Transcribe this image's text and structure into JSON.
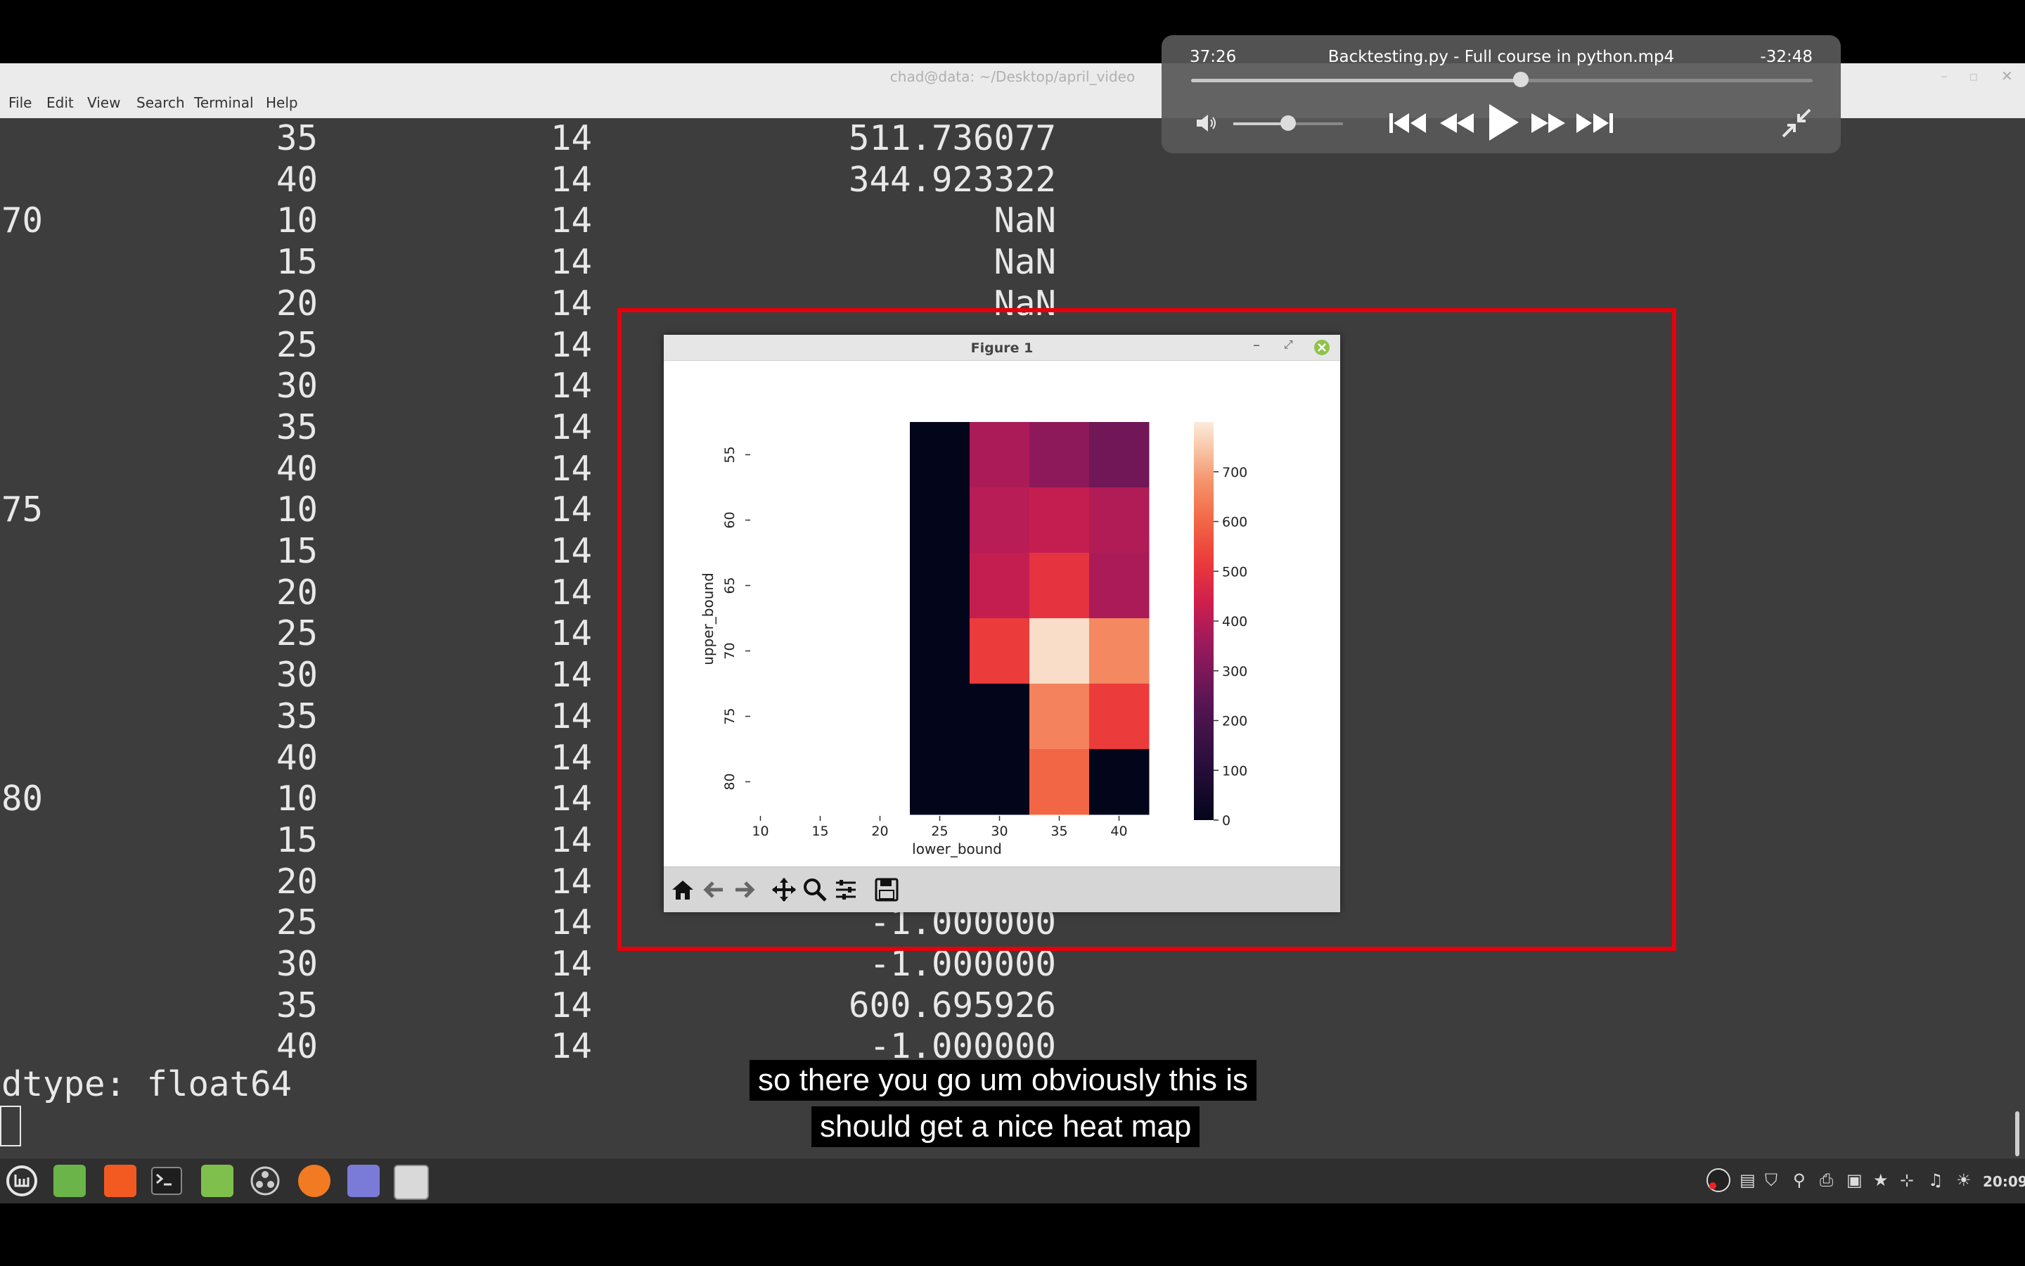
{
  "terminal": {
    "title": "chad@data: ~/Desktop/april_video",
    "menu": [
      "File",
      "Edit",
      "View",
      "Search",
      "Terminal",
      "Help"
    ],
    "rows": [
      [
        "",
        "35",
        "14",
        "511.736077"
      ],
      [
        "",
        "40",
        "14",
        "344.923322"
      ],
      [
        "70",
        "10",
        "14",
        "NaN"
      ],
      [
        "",
        "15",
        "14",
        "NaN"
      ],
      [
        "",
        "20",
        "14",
        "NaN"
      ],
      [
        "",
        "25",
        "14",
        ""
      ],
      [
        "",
        "30",
        "14",
        ""
      ],
      [
        "",
        "35",
        "14",
        ""
      ],
      [
        "",
        "40",
        "14",
        ""
      ],
      [
        "75",
        "10",
        "14",
        ""
      ],
      [
        "",
        "15",
        "14",
        ""
      ],
      [
        "",
        "20",
        "14",
        ""
      ],
      [
        "",
        "25",
        "14",
        ""
      ],
      [
        "",
        "30",
        "14",
        ""
      ],
      [
        "",
        "35",
        "14",
        ""
      ],
      [
        "",
        "40",
        "14",
        ""
      ],
      [
        "80",
        "10",
        "14",
        ""
      ],
      [
        "",
        "15",
        "14",
        ""
      ],
      [
        "",
        "20",
        "14",
        ""
      ],
      [
        "",
        "25",
        "14",
        "-1.000000"
      ],
      [
        "",
        "30",
        "14",
        "-1.000000"
      ],
      [
        "",
        "35",
        "14",
        "600.695926"
      ],
      [
        "",
        "40",
        "14",
        "-1.000000"
      ]
    ],
    "dtype_line": "dtype: float64"
  },
  "video_player": {
    "elapsed": "37:26",
    "title": "Backtesting.py - Full course in python.mp4",
    "remaining": "-32:48",
    "progress_fraction": 0.53,
    "volume_fraction": 0.5
  },
  "figure_window": {
    "title": "Figure 1",
    "toolbar": [
      "home-icon",
      "back-arrow-icon",
      "forward-arrow-icon",
      "pan-icon",
      "zoom-icon",
      "configure-subplots-icon",
      "save-icon"
    ]
  },
  "chart_data": {
    "type": "heatmap",
    "title": "",
    "xlabel": "lower_bound",
    "ylabel": "upper_bound",
    "x_categories": [
      "10",
      "15",
      "20",
      "25",
      "30",
      "35",
      "40"
    ],
    "y_categories": [
      "55",
      "60",
      "65",
      "70",
      "75",
      "80"
    ],
    "values": [
      [
        null,
        null,
        null,
        0,
        380,
        330,
        280
      ],
      [
        null,
        null,
        null,
        0,
        400,
        420,
        390
      ],
      [
        null,
        null,
        null,
        0,
        420,
        500,
        380
      ],
      [
        null,
        null,
        null,
        0,
        520,
        780,
        660
      ],
      [
        null,
        null,
        null,
        0,
        0,
        650,
        520
      ],
      [
        null,
        null,
        null,
        0,
        0,
        600,
        0
      ]
    ],
    "colorbar": {
      "min": 0,
      "max": 800,
      "ticks": [
        0,
        100,
        200,
        300,
        400,
        500,
        600,
        700
      ],
      "colormap": "rocket"
    }
  },
  "taskbar": {
    "apps": [
      "mint-menu-icon",
      "files-green-icon",
      "brave-browser-icon",
      "terminal-icon",
      "folder-icon",
      "obs-icon",
      "firefox-icon",
      "text-editor-icon",
      "pinta-icon"
    ],
    "clock": "20:09"
  },
  "subtitles": [
    "so there you go um obviously this is",
    "should get a nice heat map"
  ]
}
